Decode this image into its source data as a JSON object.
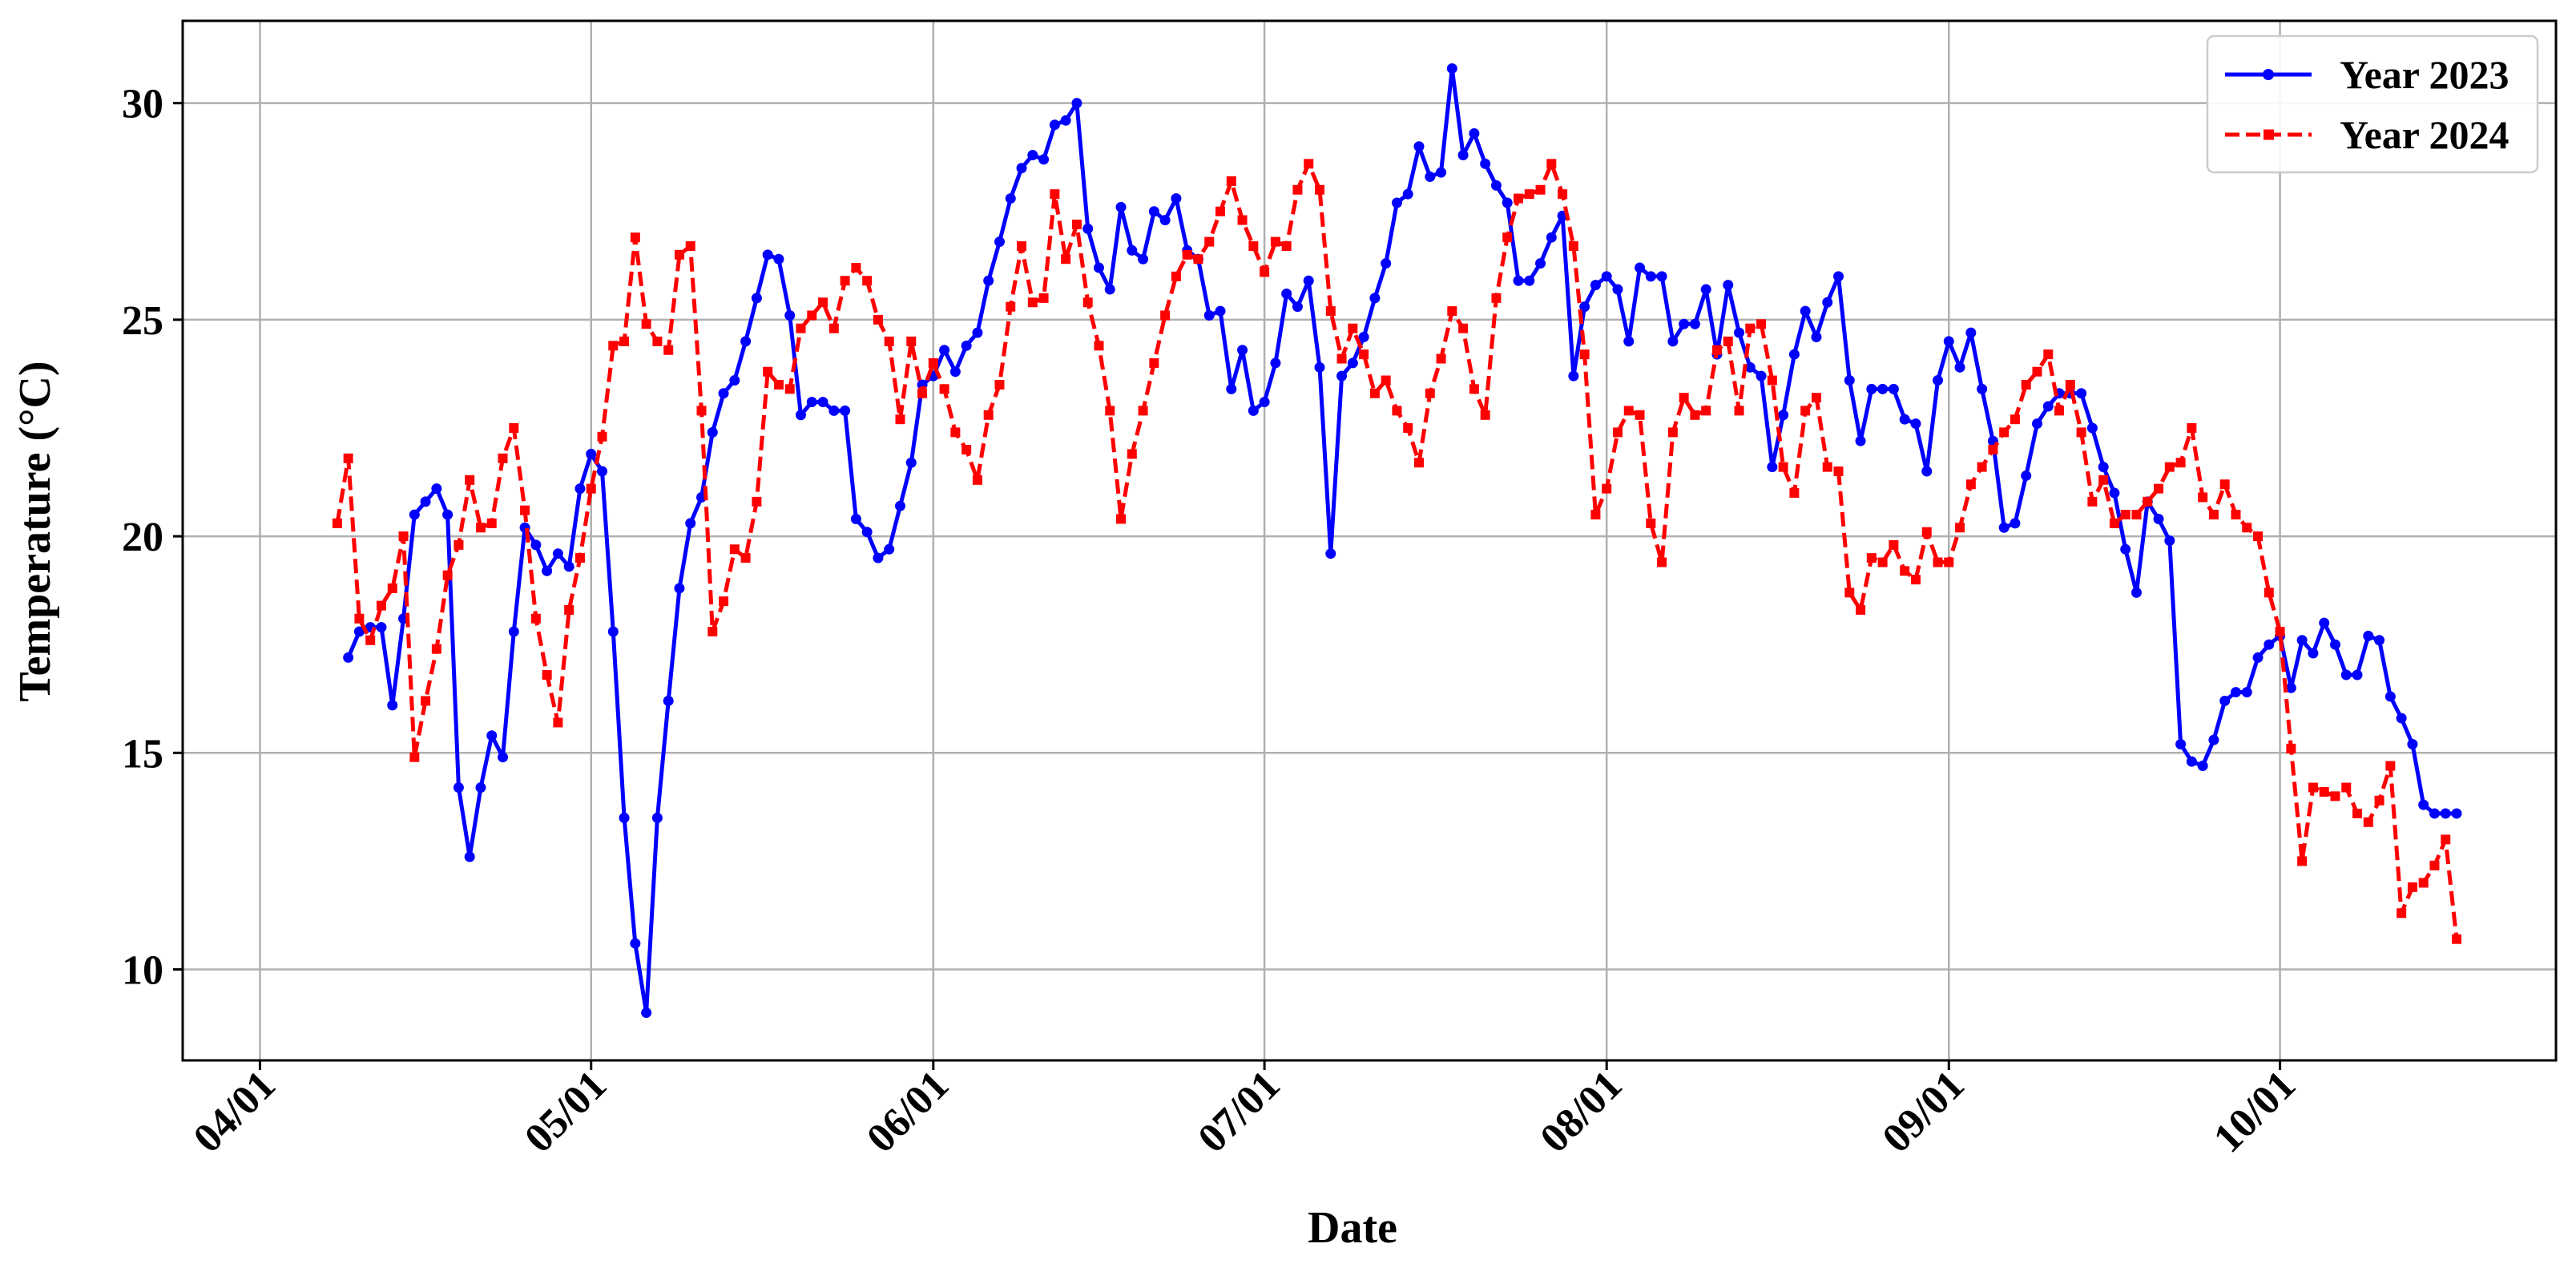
{
  "chart_data": {
    "type": "line",
    "xlabel": "Date",
    "ylabel": "Temperature (°C)",
    "x_tick_labels": [
      "04/01",
      "05/01",
      "06/01",
      "07/01",
      "08/01",
      "09/01",
      "10/01"
    ],
    "x_ticks": [
      "2024-04-01",
      "2024-05-01",
      "2024-06-01",
      "2024-07-01",
      "2024-08-01",
      "2024-09-01",
      "2024-10-01"
    ],
    "xlim": [
      "2024-03-25",
      "2024-10-26"
    ],
    "y_ticks": [
      10,
      15,
      20,
      25,
      30
    ],
    "ylim": [
      7.9,
      31.9
    ],
    "grid": true,
    "legend_position": "top-right",
    "series": [
      {
        "name": "Year 2023",
        "color": "#0000ff",
        "line_style": "solid",
        "marker": "circle",
        "start_date": "2024-04-09",
        "values": [
          17.2,
          17.8,
          17.9,
          17.9,
          16.1,
          18.1,
          20.5,
          20.8,
          21.1,
          20.5,
          14.2,
          12.6,
          14.2,
          15.4,
          14.9,
          17.8,
          20.2,
          19.8,
          19.2,
          19.6,
          19.3,
          21.1,
          21.9,
          21.5,
          17.8,
          13.5,
          10.6,
          9.0,
          13.5,
          16.2,
          18.8,
          20.3,
          20.9,
          22.4,
          23.3,
          23.6,
          24.5,
          25.5,
          26.5,
          26.4,
          25.1,
          22.8,
          23.1,
          23.1,
          22.9,
          22.9,
          20.4,
          20.1,
          19.5,
          19.7,
          20.7,
          21.7,
          23.5,
          23.7,
          24.3,
          23.8,
          24.4,
          24.7,
          25.9,
          26.8,
          27.8,
          28.5,
          28.8,
          28.7,
          29.5,
          29.6,
          30.0,
          27.1,
          26.2,
          25.7,
          27.6,
          26.6,
          26.4,
          27.5,
          27.3,
          27.8,
          26.6,
          26.4,
          25.1,
          25.2,
          23.4,
          24.3,
          22.9,
          23.1,
          24.0,
          25.6,
          25.3,
          25.9,
          23.9,
          19.6,
          23.7,
          24.0,
          24.6,
          25.5,
          26.3,
          27.7,
          27.9,
          29.0,
          28.3,
          28.4,
          30.8,
          28.8,
          29.3,
          28.6,
          28.1,
          27.7,
          25.9,
          25.9,
          26.3,
          26.9,
          27.4,
          23.7,
          25.3,
          25.8,
          26.0,
          25.7,
          24.5,
          26.2,
          26.0,
          26.0,
          24.5,
          24.9,
          24.9,
          25.7,
          24.2,
          25.8,
          24.7,
          23.9,
          23.7,
          21.6,
          22.8,
          24.2,
          25.2,
          24.6,
          25.4,
          26.0,
          23.6,
          22.2,
          23.4,
          23.4,
          23.4,
          22.7,
          22.6,
          21.5,
          23.6,
          24.5,
          23.9,
          24.7,
          23.4,
          22.2,
          20.2,
          20.3,
          21.4,
          22.6,
          23.0,
          23.3,
          23.3,
          23.3,
          22.5,
          21.6,
          21.0,
          19.7,
          18.7,
          20.8,
          20.4,
          19.9,
          15.2,
          14.8,
          14.7,
          15.3,
          16.2,
          16.4,
          16.4,
          17.2,
          17.5,
          17.7,
          16.5,
          17.6,
          17.3,
          18.0,
          17.5,
          16.8,
          16.8,
          17.7,
          17.6,
          16.3,
          15.8,
          15.2,
          13.8,
          13.6,
          13.6,
          13.6
        ]
      },
      {
        "name": "Year 2024",
        "color": "#ff0000",
        "line_style": "dashed",
        "marker": "square",
        "start_date": "2024-04-08",
        "values": [
          20.3,
          21.8,
          18.1,
          17.6,
          18.4,
          18.8,
          20.0,
          14.9,
          16.2,
          17.4,
          19.1,
          19.8,
          21.3,
          20.2,
          20.3,
          21.8,
          22.5,
          20.6,
          18.1,
          16.8,
          15.7,
          18.3,
          19.5,
          21.1,
          22.3,
          24.4,
          24.5,
          26.9,
          24.9,
          24.5,
          24.3,
          26.5,
          26.7,
          22.9,
          17.8,
          18.5,
          19.7,
          19.5,
          20.8,
          23.8,
          23.5,
          23.4,
          24.8,
          25.1,
          25.4,
          24.8,
          25.9,
          26.2,
          25.9,
          25.0,
          24.5,
          22.7,
          24.5,
          23.3,
          24.0,
          23.4,
          22.4,
          22.0,
          21.3,
          22.8,
          23.5,
          25.3,
          26.7,
          25.4,
          25.5,
          27.9,
          26.4,
          27.2,
          25.4,
          24.4,
          22.9,
          20.4,
          21.9,
          22.9,
          24.0,
          25.1,
          26.0,
          26.5,
          26.4,
          26.8,
          27.5,
          28.2,
          27.3,
          26.7,
          26.1,
          26.8,
          26.7,
          28.0,
          28.6,
          28.0,
          25.2,
          24.1,
          24.8,
          24.2,
          23.3,
          23.6,
          22.9,
          22.5,
          21.7,
          23.3,
          24.1,
          25.2,
          24.8,
          23.4,
          22.8,
          25.5,
          26.9,
          27.8,
          27.9,
          28.0,
          28.6,
          27.9,
          26.7,
          24.2,
          20.5,
          21.1,
          22.4,
          22.9,
          22.8,
          20.3,
          19.4,
          22.4,
          23.2,
          22.8,
          22.9,
          24.3,
          24.5,
          22.9,
          24.8,
          24.9,
          23.6,
          21.6,
          21.0,
          22.9,
          23.2,
          21.6,
          21.5,
          18.7,
          18.3,
          19.5,
          19.4,
          19.8,
          19.2,
          19.0,
          20.1,
          19.4,
          19.4,
          20.2,
          21.2,
          21.6,
          22.0,
          22.4,
          22.7,
          23.5,
          23.8,
          24.2,
          22.9,
          23.5,
          22.4,
          20.8,
          21.3,
          20.3,
          20.5,
          20.5,
          20.8,
          21.1,
          21.6,
          21.7,
          22.5,
          20.9,
          20.5,
          21.2,
          20.5,
          20.2,
          20.0,
          18.7,
          17.8,
          15.1,
          12.5,
          14.2,
          14.1,
          14.0,
          14.2,
          13.6,
          13.4,
          13.9,
          14.7,
          11.3,
          11.9,
          12.0,
          12.4,
          13.0,
          10.7
        ]
      }
    ]
  }
}
